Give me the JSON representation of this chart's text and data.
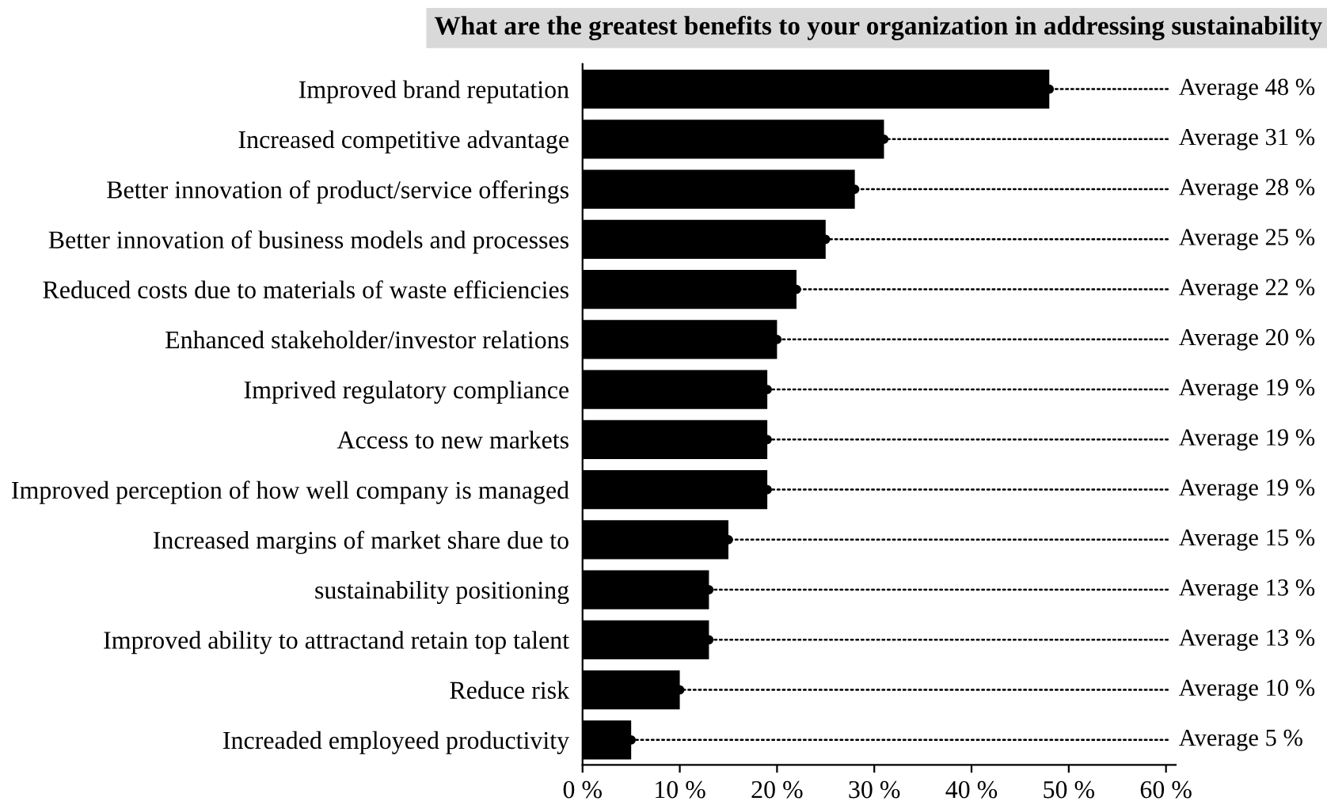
{
  "chart_data": {
    "type": "bar",
    "orientation": "horizontal",
    "title": "What are the greatest benefits to your organization in addressing sustainability",
    "categories": [
      "Improved brand reputation",
      "Increased competitive advantage",
      "Better innovation of product/service offerings",
      "Better innovation of business models and processes",
      "Reduced costs due to materials of waste efficiencies",
      "Enhanced stakeholder/investor relations",
      "Imprived regulatory compliance",
      "Access to new markets",
      "Improved perception of how well company is managed",
      "Increased margins of market share due to",
      "sustainability positioning",
      "Improved ability to attractand retain top talent",
      "Reduce risk",
      "Increaded employeed productivity"
    ],
    "values": [
      48,
      31,
      28,
      25,
      22,
      20,
      19,
      19,
      19,
      15,
      13,
      13,
      10,
      5
    ],
    "value_labels": [
      "Average 48 %",
      "Average 31 %",
      "Average 28 %",
      "Average 25 %",
      "Average 22 %",
      "Average 20 %",
      "Average 19 %",
      "Average 19 %",
      "Average 19 %",
      "Average 15 %",
      "Average 13 %",
      "Average 13 %",
      "Average 10 %",
      "Average 5 %"
    ],
    "color": "#000000",
    "xlim": [
      0,
      61
    ],
    "xticks": [
      {
        "value": 0,
        "label": "0 %"
      },
      {
        "value": 10,
        "label": "10 %"
      },
      {
        "value": 20,
        "label": "20 %"
      },
      {
        "value": 30,
        "label": "30 %"
      },
      {
        "value": 40,
        "label": "40 %"
      },
      {
        "value": 50,
        "label": "50 %"
      },
      {
        "value": 60,
        "label": "60 %"
      }
    ],
    "grid": false,
    "legend": false,
    "marker": "circle",
    "line_style": "dotted"
  }
}
